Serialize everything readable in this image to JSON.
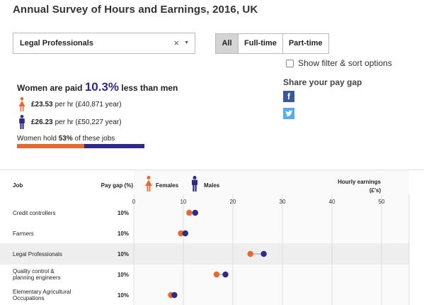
{
  "title": "Annual Survey of Hours and Earnings, 2016, UK",
  "job_select": {
    "value": "Legal Professionals",
    "clear_glyph": "×",
    "chevron_glyph": "▼"
  },
  "contract_tabs": [
    "All",
    "Full-time",
    "Part-time"
  ],
  "contract_tab_selected": "All",
  "filter_toggle": {
    "label": "Show filter & sort options",
    "checked": false
  },
  "summary": {
    "headline_prefix": "Women are paid",
    "headline_pct": "10.3%",
    "headline_suffix": "less than men",
    "female_rate": "£23.53",
    "female_detail": "per hr (£40,871 year)",
    "male_rate": "£26.23",
    "male_detail": "per hr (£50,227 year)",
    "share_prefix": "Women hold",
    "share_pct": "53%",
    "share_suffix": "of these jobs",
    "female_share": 0.53
  },
  "share": {
    "title": "Share your pay gap",
    "facebook_glyph": "f",
    "icons": [
      "facebook-icon",
      "twitter-icon"
    ]
  },
  "colors": {
    "female": "#e8692f",
    "male": "#2d2a8c",
    "highlight_row": "#eeeeee",
    "grid": "#dddddd"
  },
  "table": {
    "col_job": "Job",
    "col_gap": "Pay gap (%)",
    "legend_female": "Females",
    "legend_male": "Males",
    "col_earnings": "Hourly earnings",
    "col_earnings_unit": "(£'s)"
  },
  "chart_data": {
    "type": "scatter",
    "xlabel": "Hourly earnings (£'s)",
    "xlim": [
      0,
      55
    ],
    "x_ticks": [
      0,
      10,
      20,
      30,
      40,
      50
    ],
    "highlighted_job": "Legal Professionals",
    "rows": [
      {
        "job": [
          "Credit controllers"
        ],
        "gap": "10%",
        "female": 11.2,
        "male": 12.4
      },
      {
        "job": [
          "Farmers"
        ],
        "gap": "10%",
        "female": 9.5,
        "male": 10.4
      },
      {
        "job": [
          "Legal Professionals"
        ],
        "gap": "10%",
        "female": 23.53,
        "male": 26.23
      },
      {
        "job": [
          "Quality control &",
          "planning engineers"
        ],
        "gap": "10%",
        "female": 16.7,
        "male": 18.5
      },
      {
        "job": [
          "Elementary Agricultural",
          "Occupations"
        ],
        "gap": "10%",
        "female": 7.5,
        "male": 8.2
      }
    ]
  }
}
